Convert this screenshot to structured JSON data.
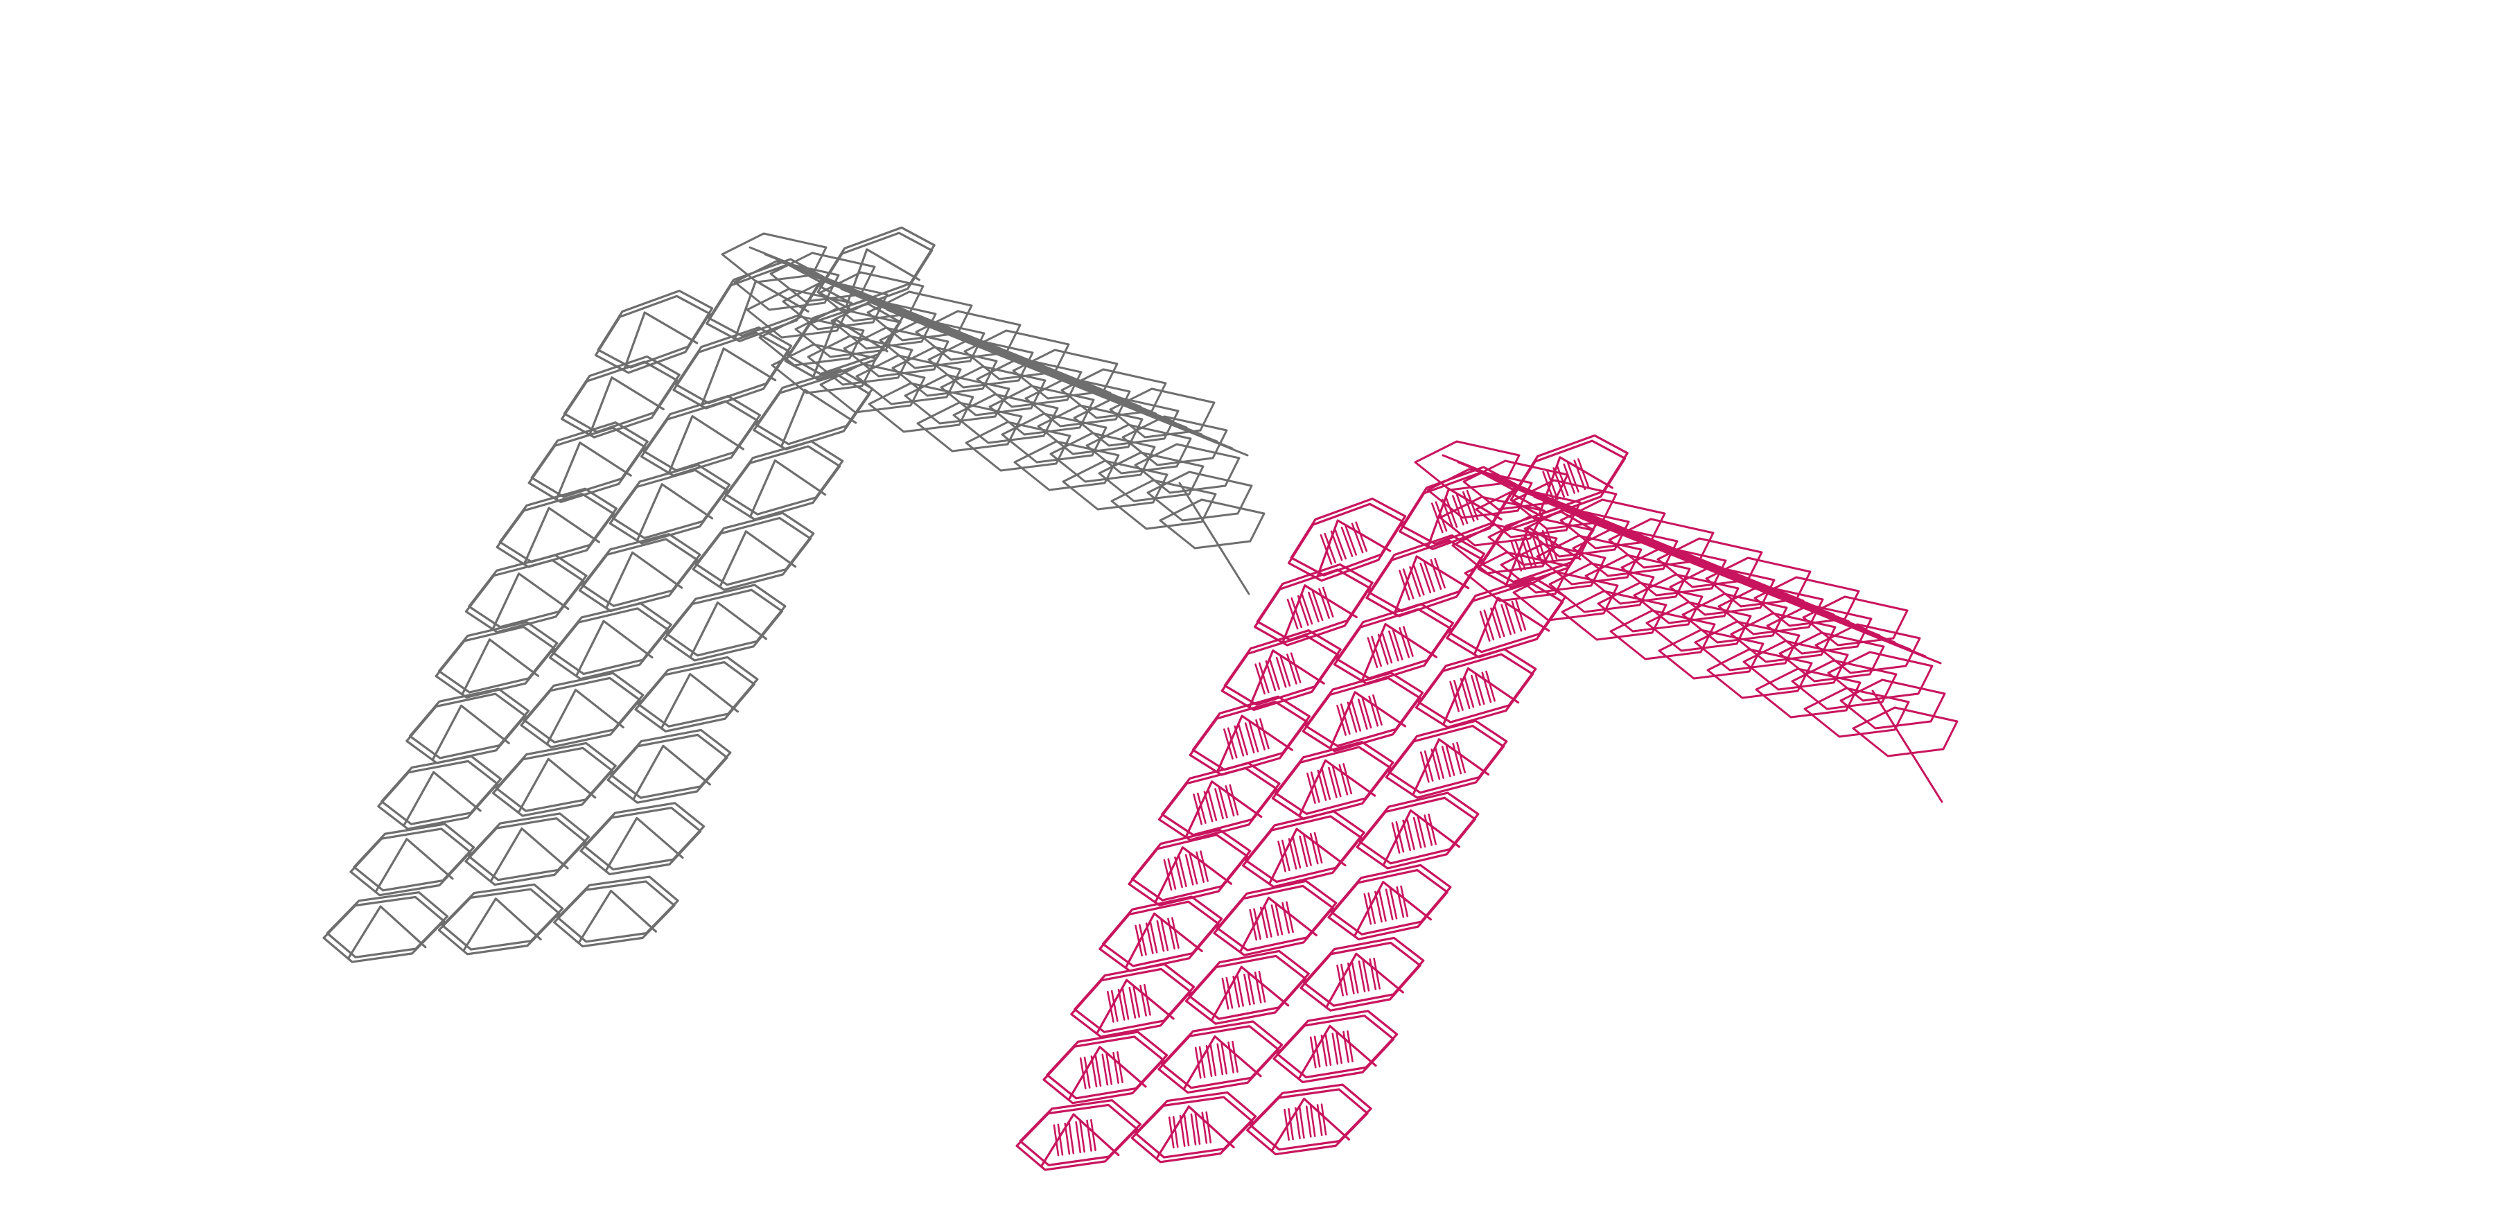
{
  "figure": {
    "structures": [
      {
        "name": "arch-gray",
        "color": "#6e6e6e",
        "rows": 10
      },
      {
        "name": "arch-magenta",
        "color": "#c8155e",
        "rows": 10
      }
    ],
    "background": "#ffffff"
  }
}
